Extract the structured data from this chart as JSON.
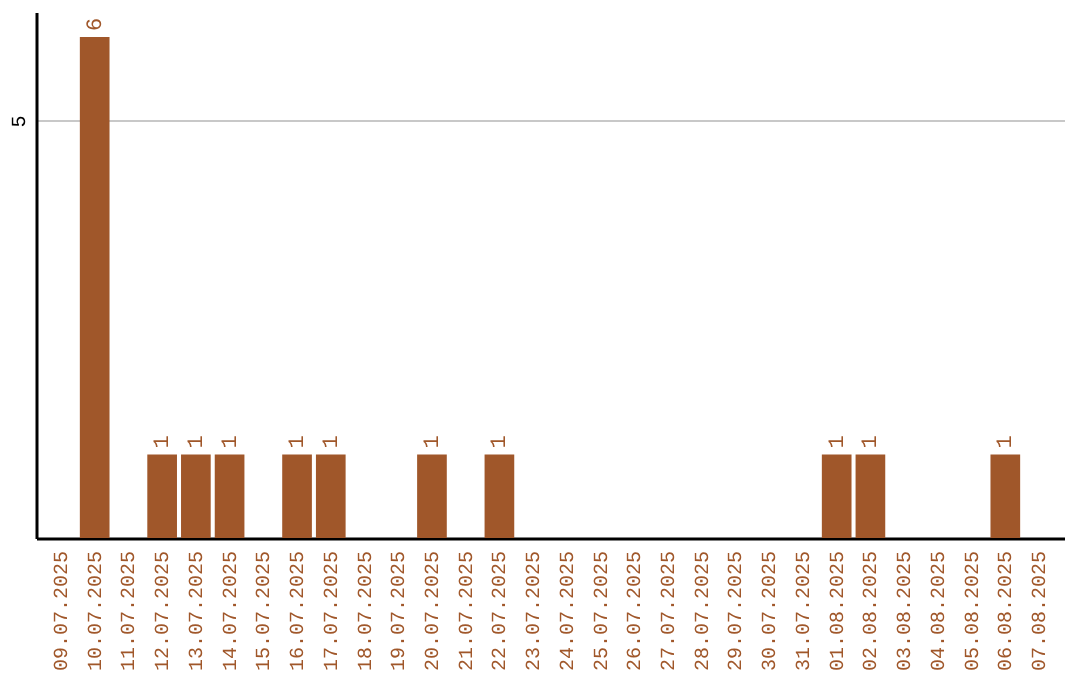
{
  "chart_data": {
    "type": "bar",
    "categories": [
      "09.07.2025",
      "10.07.2025",
      "11.07.2025",
      "12.07.2025",
      "13.07.2025",
      "14.07.2025",
      "15.07.2025",
      "16.07.2025",
      "17.07.2025",
      "18.07.2025",
      "19.07.2025",
      "20.07.2025",
      "21.07.2025",
      "22.07.2025",
      "23.07.2025",
      "24.07.2025",
      "25.07.2025",
      "26.07.2025",
      "27.07.2025",
      "28.07.2025",
      "29.07.2025",
      "30.07.2025",
      "31.07.2025",
      "01.08.2025",
      "02.08.2025",
      "03.08.2025",
      "04.08.2025",
      "05.08.2025",
      "06.08.2025",
      "07.08.2025"
    ],
    "values": [
      0,
      6,
      0,
      1,
      1,
      1,
      0,
      1,
      1,
      0,
      0,
      1,
      0,
      1,
      0,
      0,
      0,
      0,
      0,
      0,
      0,
      0,
      0,
      1,
      1,
      0,
      0,
      0,
      1,
      0
    ],
    "value_labels": [
      null,
      "6",
      null,
      "1",
      "1",
      "1",
      null,
      "1",
      "1",
      null,
      null,
      "1",
      null,
      "1",
      null,
      null,
      null,
      null,
      null,
      null,
      null,
      null,
      null,
      "1",
      "1",
      null,
      null,
      null,
      "1",
      null
    ],
    "color": "#a0572a",
    "ylim": [
      0,
      6.3
    ],
    "yticks": [
      5
    ],
    "grid": "y"
  }
}
